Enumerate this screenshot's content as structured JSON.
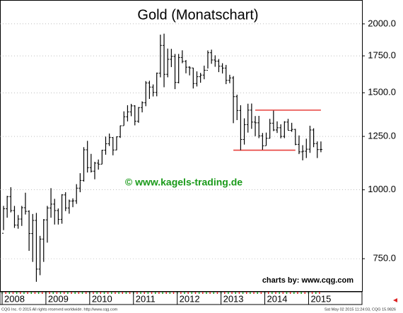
{
  "chart_data": {
    "type": "ohlc",
    "title": "Gold (Monatschart)",
    "watermark": "© www.kagels-trading.de",
    "source": "charts by: www.cqg.com",
    "footer_left": "CQG Inc. © 2015 All rights reserved worldwide. http://www.cqg.com",
    "footer_right": "Sat May 02 2015 11:24:03, CQG 15.9826",
    "color": "#000000",
    "line_color": "#e8413c",
    "log_scale": true,
    "grid": true,
    "ylim": [
      655,
      2210
    ],
    "yticks": [
      {
        "value": 750,
        "label": "750.0"
      },
      {
        "value": 1000,
        "label": "1000.0"
      },
      {
        "value": 1250,
        "label": "1250.0"
      },
      {
        "value": 1500,
        "label": "1500.0"
      },
      {
        "value": 1750,
        "label": "1750.0"
      },
      {
        "value": 2000,
        "label": "2000.0"
      }
    ],
    "categories": [
      "2008",
      null,
      null,
      null,
      null,
      null,
      null,
      null,
      null,
      null,
      null,
      null,
      "2009",
      null,
      null,
      null,
      null,
      null,
      null,
      null,
      null,
      null,
      null,
      null,
      "2010",
      null,
      null,
      null,
      null,
      null,
      null,
      null,
      null,
      null,
      null,
      null,
      "2011",
      null,
      null,
      null,
      null,
      null,
      null,
      null,
      null,
      null,
      null,
      null,
      "2012",
      null,
      null,
      null,
      null,
      null,
      null,
      null,
      null,
      null,
      null,
      null,
      "2013",
      null,
      null,
      null,
      null,
      null,
      null,
      null,
      null,
      null,
      null,
      null,
      "2014",
      null,
      null,
      null,
      null,
      null,
      null,
      null,
      null,
      null,
      null,
      null,
      "2015",
      null,
      null,
      null
    ],
    "open": [
      834,
      924,
      972,
      917,
      863,
      885,
      928,
      914,
      833,
      880,
      718,
      814,
      882,
      927,
      942,
      917,
      884,
      979,
      927,
      954,
      955,
      1007,
      1040,
      1182,
      1097,
      1081,
      1118,
      1113,
      1180,
      1212,
      1244,
      1181,
      1248,
      1307,
      1357,
      1385,
      1420,
      1332,
      1410,
      1439,
      1563,
      1536,
      1502,
      1628,
      1828,
      1620,
      1725,
      1746,
      1566,
      1738,
      1710,
      1669,
      1664,
      1559,
      1604,
      1615,
      1648,
      1773,
      1720,
      1712,
      1676,
      1663,
      1580,
      1596,
      1476,
      1393,
      1234,
      1313,
      1395,
      1327,
      1323,
      1253,
      1202,
      1240,
      1321,
      1284,
      1296,
      1250,
      1327,
      1282,
      1287,
      1209,
      1172,
      1175,
      1185,
      1284,
      1213,
      1183
    ],
    "high": [
      935,
      975,
      1011,
      935,
      900,
      935,
      988,
      918,
      904,
      908,
      825,
      885,
      935,
      1007,
      963,
      925,
      982,
      990,
      960,
      965,
      1024,
      1072,
      1195,
      1227,
      1162,
      1124,
      1135,
      1182,
      1249,
      1265,
      1246,
      1250,
      1308,
      1388,
      1424,
      1432,
      1424,
      1413,
      1447,
      1575,
      1577,
      1553,
      1632,
      1912,
      1920,
      1804,
      1802,
      1764,
      1764,
      1791,
      1720,
      1676,
      1665,
      1640,
      1630,
      1680,
      1790,
      1796,
      1754,
      1727,
      1697,
      1685,
      1617,
      1608,
      1488,
      1424,
      1348,
      1433,
      1434,
      1361,
      1362,
      1268,
      1270,
      1345,
      1392,
      1331,
      1315,
      1332,
      1345,
      1323,
      1290,
      1255,
      1205,
      1238,
      1307,
      1293,
      1224,
      1224
    ],
    "low": [
      845,
      890,
      910,
      853,
      850,
      860,
      902,
      775,
      740,
      681,
      700,
      740,
      802,
      890,
      865,
      865,
      868,
      915,
      905,
      930,
      943,
      990,
      1035,
      1075,
      1075,
      1045,
      1088,
      1113,
      1158,
      1201,
      1155,
      1180,
      1242,
      1308,
      1331,
      1360,
      1309,
      1323,
      1382,
      1418,
      1462,
      1477,
      1478,
      1600,
      1535,
      1600,
      1670,
      1523,
      1560,
      1697,
      1627,
      1613,
      1527,
      1540,
      1564,
      1587,
      1660,
      1693,
      1672,
      1635,
      1626,
      1555,
      1561,
      1321,
      1338,
      1180,
      1208,
      1270,
      1290,
      1251,
      1241,
      1182,
      1203,
      1239,
      1278,
      1268,
      1240,
      1241,
      1282,
      1274,
      1205,
      1161,
      1131,
      1142,
      1167,
      1195,
      1142,
      1170
    ],
    "close": [
      924,
      972,
      917,
      863,
      885,
      928,
      914,
      833,
      880,
      718,
      814,
      882,
      927,
      942,
      917,
      884,
      979,
      927,
      954,
      955,
      1007,
      1040,
      1182,
      1097,
      1081,
      1118,
      1113,
      1180,
      1212,
      1244,
      1181,
      1248,
      1307,
      1357,
      1385,
      1420,
      1332,
      1410,
      1439,
      1563,
      1536,
      1502,
      1628,
      1828,
      1620,
      1725,
      1746,
      1566,
      1738,
      1710,
      1669,
      1664,
      1559,
      1604,
      1615,
      1648,
      1773,
      1720,
      1712,
      1676,
      1663,
      1580,
      1596,
      1476,
      1393,
      1234,
      1313,
      1395,
      1327,
      1323,
      1253,
      1202,
      1240,
      1321,
      1284,
      1296,
      1250,
      1327,
      1282,
      1287,
      1209,
      1172,
      1175,
      1185,
      1284,
      1213,
      1183,
      1184
    ],
    "hlines": [
      {
        "value": 1395,
        "from": 69,
        "to": 87
      },
      {
        "value": 1180,
        "from": 63,
        "to": 80
      }
    ]
  }
}
